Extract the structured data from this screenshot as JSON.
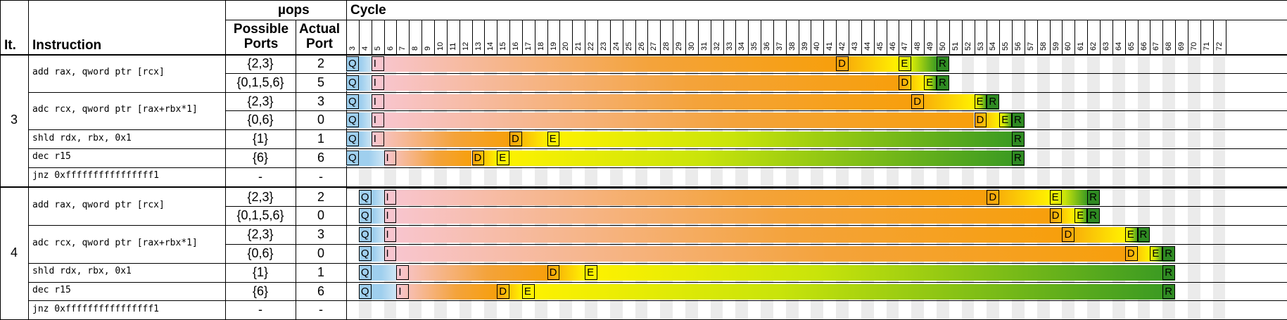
{
  "header": {
    "uops_label": "µops",
    "cycle_label": "Cycle",
    "it_label": "It.",
    "instruction_label": "Instruction",
    "possible_label_1": "Possible",
    "possible_label_2": "Ports",
    "actual_label_1": "Actual",
    "actual_label_2": "Port"
  },
  "cycle_ticks": [
    "3",
    "4",
    "5",
    "6",
    "7",
    "8",
    "9",
    "10",
    "11",
    "12",
    "13",
    "14",
    "15",
    "16",
    "17",
    "18",
    "19",
    "20",
    "21",
    "22",
    "23",
    "24",
    "25",
    "26",
    "27",
    "28",
    "29",
    "30",
    "31",
    "32",
    "33",
    "34",
    "35",
    "36",
    "37",
    "38",
    "39",
    "40",
    "41",
    "42",
    "43",
    "44",
    "45",
    "46",
    "47",
    "48",
    "49",
    "50",
    "51",
    "52",
    "53",
    "54",
    "55",
    "56",
    "57",
    "58",
    "59",
    "60",
    "61",
    "62",
    "63",
    "64",
    "65",
    "66",
    "67",
    "68",
    "69",
    "70",
    "71",
    "72"
  ],
  "iterations": [
    {
      "number": "3",
      "instructions": [
        {
          "text": "add rax, qword ptr [rcx]",
          "uops": [
            {
              "possible": "{2,3}",
              "actual": "2",
              "q": 3,
              "i": 5,
              "d": 42,
              "e": 47,
              "r": 50
            },
            {
              "possible": "{0,1,5,6}",
              "actual": "5",
              "q": 3,
              "i": 5,
              "d": 47,
              "e": 49,
              "r": 50
            }
          ]
        },
        {
          "text": "adc rcx, qword ptr [rax+rbx*1]",
          "uops": [
            {
              "possible": "{2,3}",
              "actual": "3",
              "q": 3,
              "i": 5,
              "d": 48,
              "e": 53,
              "r": 54
            },
            {
              "possible": "{0,6}",
              "actual": "0",
              "q": 3,
              "i": 5,
              "d": 53,
              "e": 55,
              "r": 56
            }
          ]
        },
        {
          "text": "shld rdx, rbx, 0x1",
          "uops": [
            {
              "possible": "{1}",
              "actual": "1",
              "q": 3,
              "i": 5,
              "d": 16,
              "e": 19,
              "r": 56
            }
          ]
        },
        {
          "text": "dec r15",
          "uops": [
            {
              "possible": "{6}",
              "actual": "6",
              "q": 3,
              "i": 6,
              "d": 13,
              "e": 15,
              "r": 56
            }
          ]
        },
        {
          "text": "jnz 0xffffffffffffffff1",
          "uops": [
            {
              "possible": "-",
              "actual": "-"
            }
          ]
        }
      ]
    },
    {
      "number": "4",
      "instructions": [
        {
          "text": "add rax, qword ptr [rcx]",
          "uops": [
            {
              "possible": "{2,3}",
              "actual": "2",
              "q": 4,
              "i": 6,
              "d": 54,
              "e": 59,
              "r": 62
            },
            {
              "possible": "{0,1,5,6}",
              "actual": "0",
              "q": 4,
              "i": 6,
              "d": 59,
              "e": 61,
              "r": 62
            }
          ]
        },
        {
          "text": "adc rcx, qword ptr [rax+rbx*1]",
          "uops": [
            {
              "possible": "{2,3}",
              "actual": "3",
              "q": 4,
              "i": 6,
              "d": 60,
              "e": 65,
              "r": 66
            },
            {
              "possible": "{0,6}",
              "actual": "0",
              "q": 4,
              "i": 6,
              "d": 65,
              "e": 67,
              "r": 68
            }
          ]
        },
        {
          "text": "shld rdx, rbx, 0x1",
          "uops": [
            {
              "possible": "{1}",
              "actual": "1",
              "q": 4,
              "i": 7,
              "d": 19,
              "e": 22,
              "r": 68
            }
          ]
        },
        {
          "text": "dec r15",
          "uops": [
            {
              "possible": "{6}",
              "actual": "6",
              "q": 4,
              "i": 7,
              "d": 15,
              "e": 17,
              "r": 68
            }
          ]
        },
        {
          "text": "jnz 0xffffffffffffffff1",
          "uops": [
            {
              "possible": "-",
              "actual": "-"
            }
          ]
        }
      ]
    }
  ],
  "event_letters": {
    "q": "Q",
    "i": "I",
    "d": "D",
    "e": "E",
    "r": "R"
  },
  "colors": {
    "queue": "#9fcfee",
    "issue_gradient": [
      "#f8c6d2",
      "#f4a33b",
      "#f79f0c"
    ],
    "dispatch_gradient": [
      "#f79f0c",
      "#fff200"
    ],
    "execute_gradient": [
      "#fff200",
      "#c9e40a",
      "#3c9b22"
    ],
    "retire": "#2f8a22",
    "band": "#ebebeb"
  }
}
